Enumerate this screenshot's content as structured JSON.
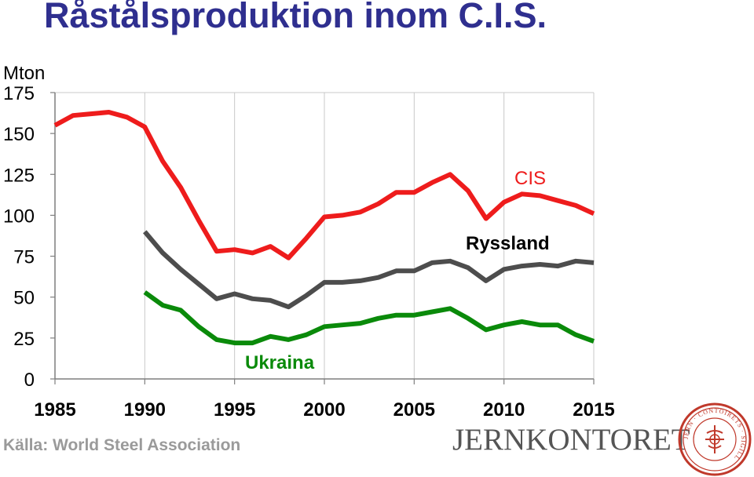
{
  "title": "Råstålsproduktion inom C.I.S.",
  "unit_label": "Mton",
  "source": "Källa: World Steel Association",
  "logo": {
    "text": "JERNKONTORET",
    "seal_text": "JERN · CONTOIRETS · SIGILL"
  },
  "chart_data": {
    "type": "line",
    "title": "Råstålsproduktion inom C.I.S.",
    "xlabel": "",
    "ylabel": "Mton",
    "xlim": [
      1985,
      2015
    ],
    "ylim": [
      0,
      175
    ],
    "grid": "vertical",
    "x_ticks": [
      1985,
      1990,
      1995,
      2000,
      2005,
      2010,
      2015
    ],
    "y_ticks": [
      0,
      25,
      50,
      75,
      100,
      125,
      150,
      175
    ],
    "series": [
      {
        "name": "CIS",
        "color": "#ee1c1c",
        "x": [
          1985,
          1986,
          1987,
          1988,
          1989,
          1990,
          1991,
          1992,
          1993,
          1994,
          1995,
          1996,
          1997,
          1998,
          1999,
          2000,
          2001,
          2002,
          2003,
          2004,
          2005,
          2006,
          2007,
          2008,
          2009,
          2010,
          2011,
          2012,
          2013,
          2014,
          2015
        ],
        "values": [
          155,
          161,
          162,
          163,
          160,
          154,
          133,
          117,
          97,
          78,
          79,
          77,
          81,
          74,
          86,
          99,
          100,
          102,
          107,
          114,
          114,
          120,
          125,
          115,
          98,
          108,
          113,
          112,
          109,
          106,
          101
        ]
      },
      {
        "name": "Ryssland",
        "color": "#4d4d4d",
        "x": [
          1990,
          1991,
          1992,
          1993,
          1994,
          1995,
          1996,
          1997,
          1998,
          1999,
          2000,
          2001,
          2002,
          2003,
          2004,
          2005,
          2006,
          2007,
          2008,
          2009,
          2010,
          2011,
          2012,
          2013,
          2014,
          2015
        ],
        "values": [
          90,
          77,
          67,
          58,
          49,
          52,
          49,
          48,
          44,
          51,
          59,
          59,
          60,
          62,
          66,
          66,
          71,
          72,
          68,
          60,
          67,
          69,
          70,
          69,
          72,
          71
        ]
      },
      {
        "name": "Ukraina",
        "color": "#0a8a0a",
        "x": [
          1990,
          1991,
          1992,
          1993,
          1994,
          1995,
          1996,
          1997,
          1998,
          1999,
          2000,
          2001,
          2002,
          2003,
          2004,
          2005,
          2006,
          2007,
          2008,
          2009,
          2010,
          2011,
          2012,
          2013,
          2014,
          2015
        ],
        "values": [
          53,
          45,
          42,
          32,
          24,
          22,
          22,
          26,
          24,
          27,
          32,
          33,
          34,
          37,
          39,
          39,
          41,
          43,
          37,
          30,
          33,
          35,
          33,
          33,
          27,
          23
        ]
      }
    ],
    "annotations": [
      {
        "text": "CIS",
        "color": "#ee1c1c"
      },
      {
        "text": "Ryssland",
        "color": "#000000"
      },
      {
        "text": "Ukraina",
        "color": "#0a8a0a"
      }
    ]
  }
}
